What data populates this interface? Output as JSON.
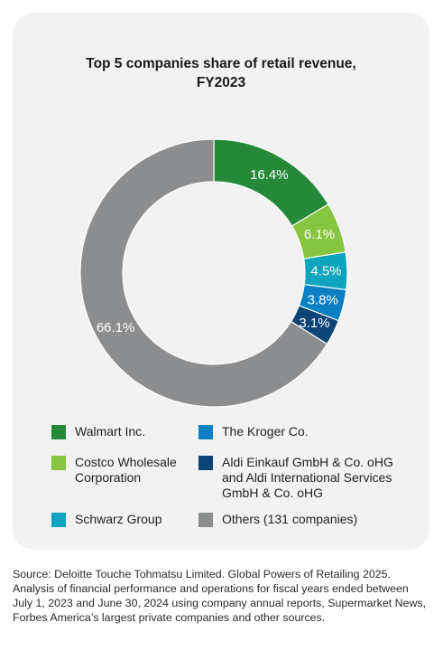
{
  "chart_data": {
    "type": "pie",
    "title_line1": "Top 5 companies share of retail revenue,",
    "title_line2": "FY2023",
    "series": [
      {
        "name": "Walmart Inc.",
        "value": 16.4,
        "label": "16.4%",
        "color": "#26893a"
      },
      {
        "name": "Costco Wholesale Corporation",
        "value": 6.1,
        "label": "6.1%",
        "color": "#86c540"
      },
      {
        "name": "Schwarz Group",
        "value": 4.5,
        "label": "4.5%",
        "color": "#0fa4bd"
      },
      {
        "name": "The Kroger Co.",
        "value": 3.8,
        "label": "3.8%",
        "color": "#0b7fc1"
      },
      {
        "name": "Aldi Einkauf GmbH & Co. oHG and Aldi International Services GmbH & Co. oHG",
        "value": 3.1,
        "label": "3.1%",
        "color": "#0d4476"
      },
      {
        "name": "Others (131 companies)",
        "value": 66.1,
        "label": "66.1%",
        "color": "#8c8d8f"
      }
    ],
    "legend": {
      "placement": "bottom",
      "items": [
        {
          "text_lines": [
            "Walmart Inc."
          ],
          "color": "#26893a"
        },
        {
          "text_lines": [
            "The Kroger Co."
          ],
          "color": "#0b7fc1"
        },
        {
          "text_lines": [
            "Costco Wholesale",
            "Corporation"
          ],
          "color": "#86c540"
        },
        {
          "text_lines": [
            "Aldi Einkauf GmbH & Co. oHG",
            "and Aldi International Services",
            "GmbH & Co. oHG"
          ],
          "color": "#0d4476"
        },
        {
          "text_lines": [
            "Schwarz Group"
          ],
          "color": "#0fa4bd"
        },
        {
          "text_lines": [
            "Others (131 companies)"
          ],
          "color": "#8c8d8f"
        }
      ]
    }
  },
  "source": {
    "lines": [
      "Source: Deloitte Touche Tohmatsu Limited. Global Powers of Retailing 2025.",
      "Analysis of financial performance and operations for fiscal years ended between",
      "July 1, 2023 and June 30, 2024 using company annual reports, Supermarket News,",
      "Forbes America’s largest private companies and other sources."
    ]
  }
}
